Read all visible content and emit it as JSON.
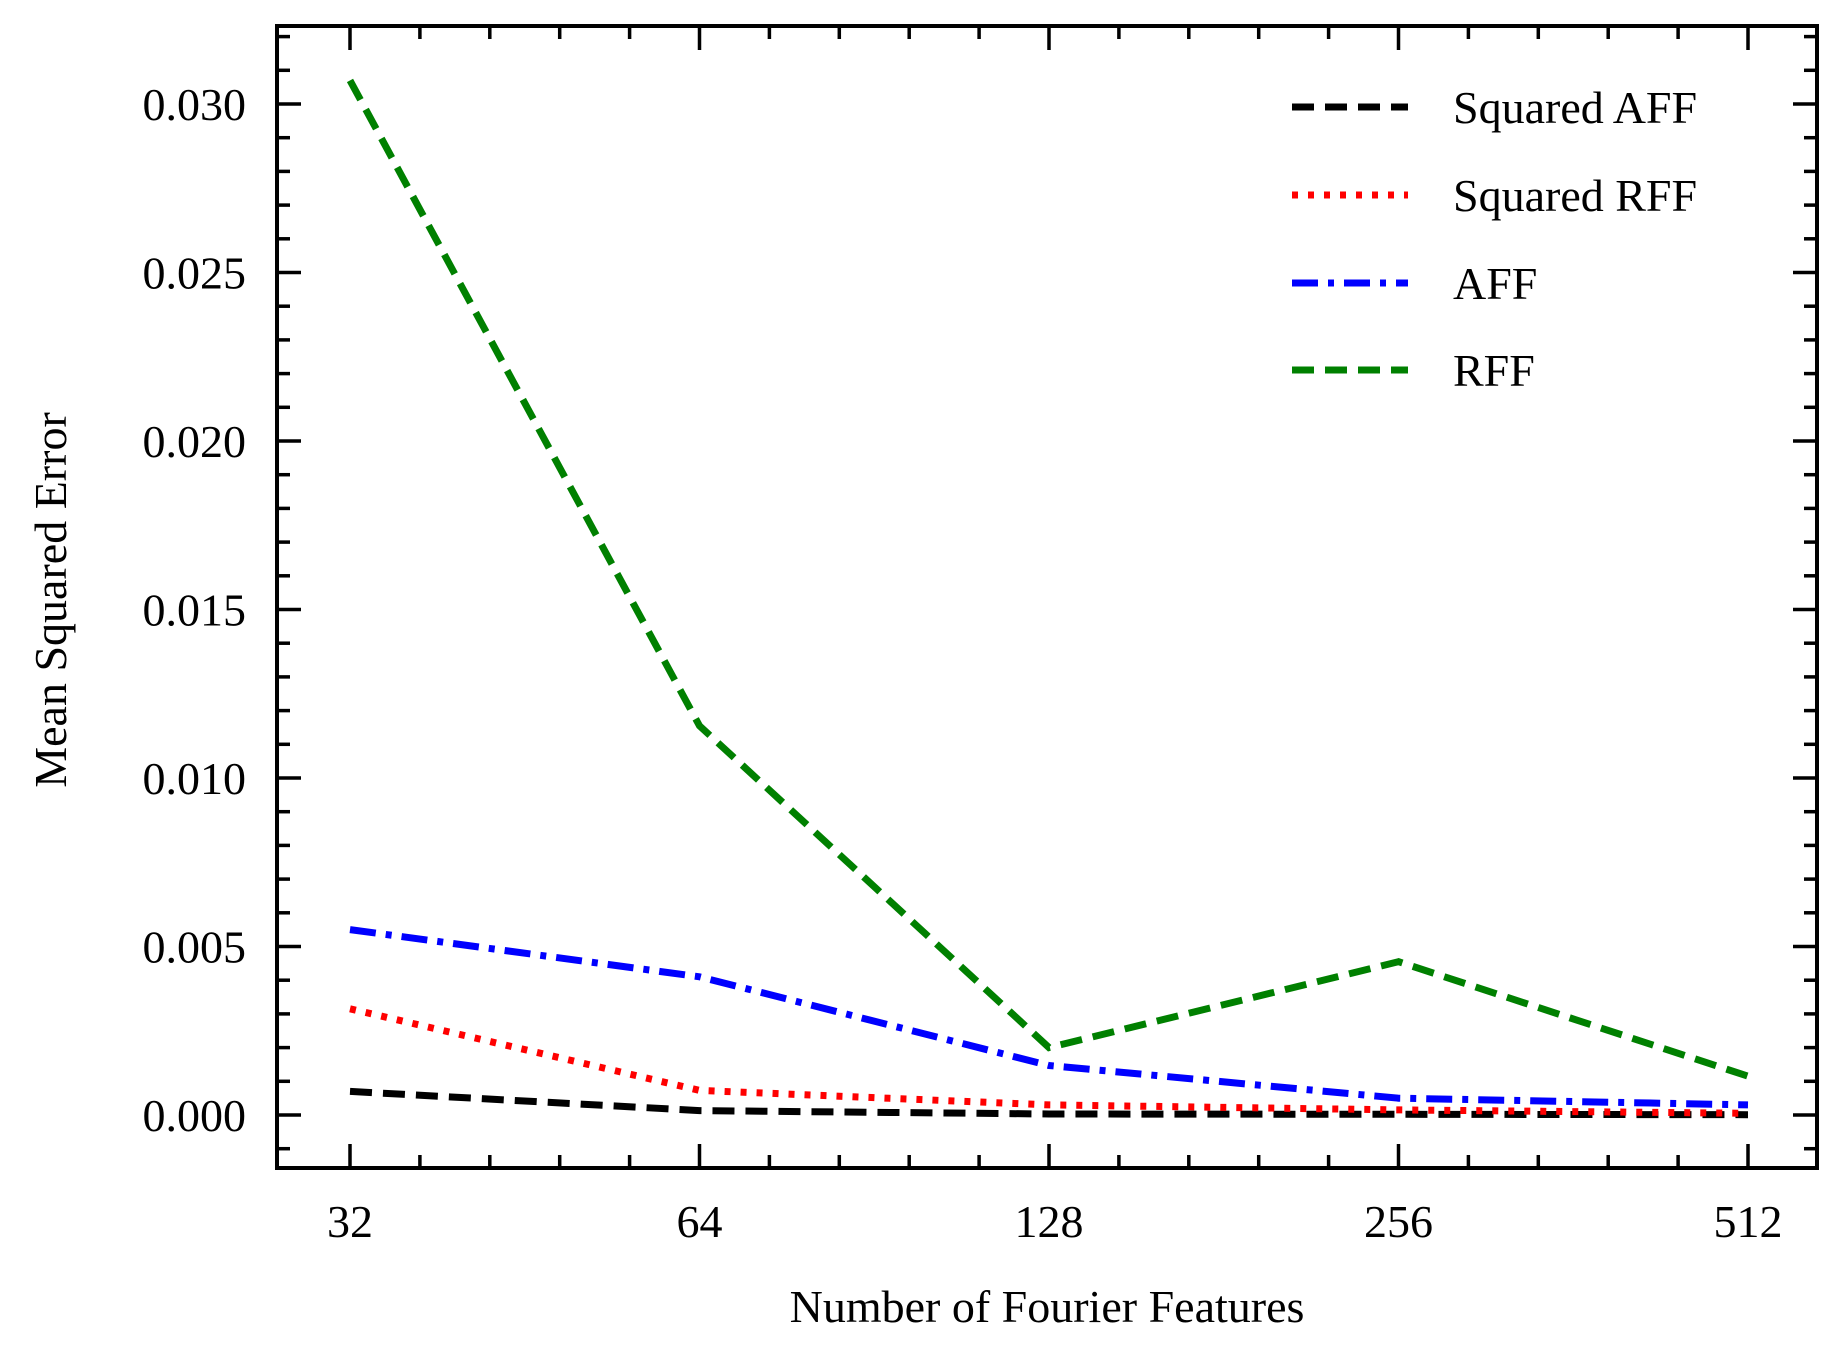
{
  "chart_data": {
    "type": "line",
    "title": "",
    "xlabel": "Number of Fourier Features",
    "ylabel": "Mean Squared Error",
    "x": [
      32,
      64,
      128,
      256,
      512
    ],
    "x_scale": "log2",
    "x_tick_labels": [
      "32",
      "64",
      "128",
      "256",
      "512"
    ],
    "ylim": [
      -0.0015,
      0.0322
    ],
    "y_ticks": [
      0.0,
      0.005,
      0.01,
      0.015,
      0.02,
      0.025,
      0.03
    ],
    "y_tick_labels": [
      "0.000",
      "0.005",
      "0.010",
      "0.015",
      "0.020",
      "0.025",
      "0.030"
    ],
    "grid": false,
    "legend_position": "upper right",
    "series": [
      {
        "name": "Squared AFF",
        "color": "#000000",
        "style": "dashed",
        "values": [
          0.0007,
          0.00013,
          3e-05,
          2e-05,
          1e-05
        ]
      },
      {
        "name": "Squared RFF",
        "color": "#ff0000",
        "style": "dotted",
        "values": [
          0.00315,
          0.00073,
          0.0003,
          0.00015,
          5e-05
        ]
      },
      {
        "name": "AFF",
        "color": "#0000ff",
        "style": "dashdot",
        "values": [
          0.0055,
          0.0041,
          0.00147,
          0.0005,
          0.0003
        ]
      },
      {
        "name": "RFF",
        "color": "#008000",
        "style": "dashed",
        "values": [
          0.0307,
          0.01155,
          0.002,
          0.00455,
          0.00115
        ]
      }
    ]
  }
}
